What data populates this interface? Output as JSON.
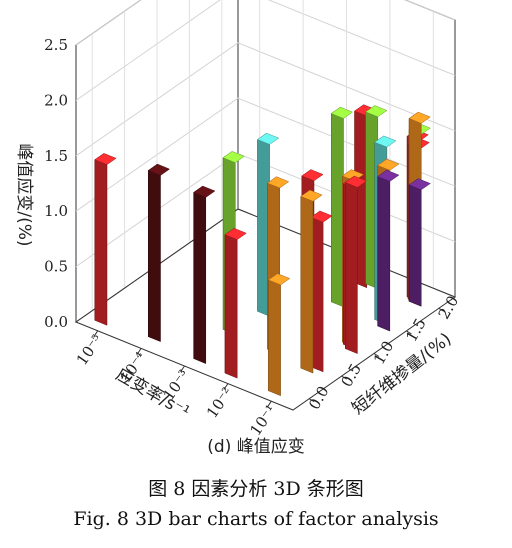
{
  "chart_data": {
    "type": "bar3d",
    "panel_label": "(d) 峰值应变",
    "ylabel": "峰值应变/(%)",
    "x_axis_label": "应变率/s⁻¹",
    "x_ticks": [
      "10⁻⁵",
      "10⁻⁴",
      "10⁻³",
      "10⁻²",
      "10⁻¹"
    ],
    "z_axis_label": "短纤维掺量/(%)",
    "z_ticks": [
      "0.0",
      "0.5",
      "1.0",
      "1.5",
      "2.0"
    ],
    "y_ticks": [
      "0.0",
      "0.5",
      "1.0",
      "1.5",
      "2.0",
      "2.5"
    ],
    "ylim": [
      0,
      2.5
    ],
    "grid": true,
    "colors": {
      "red": "#e0282c",
      "maroon": "#5a1014",
      "green": "#8fe33c",
      "cyan": "#5fd8d3",
      "orange": "#f39121",
      "purple": "#6b2a8a"
    },
    "bars": [
      {
        "strain_rate": "10⁻⁵",
        "fiber": "0.0",
        "value": 1.45,
        "color": "red"
      },
      {
        "strain_rate": "10⁻⁴",
        "fiber": "0.0",
        "value": 1.5,
        "color": "maroon"
      },
      {
        "strain_rate": "10⁻³",
        "fiber": "0.0",
        "value": 1.5,
        "color": "maroon"
      },
      {
        "strain_rate": "10⁻³",
        "fiber": "0.5",
        "value": 1.55,
        "color": "green"
      },
      {
        "strain_rate": "10⁻³",
        "fiber": "1.0",
        "value": 1.55,
        "color": "cyan"
      },
      {
        "strain_rate": "10⁻²",
        "fiber": "0.0",
        "value": 1.25,
        "color": "red"
      },
      {
        "strain_rate": "10⁻²",
        "fiber": "0.5",
        "value": 1.5,
        "color": "orange"
      },
      {
        "strain_rate": "10⁻²",
        "fiber": "1.0",
        "value": 1.4,
        "color": "red"
      },
      {
        "strain_rate": "10⁻²",
        "fiber": "1.5",
        "value": 1.7,
        "color": "green"
      },
      {
        "strain_rate": "10⁻²",
        "fiber": "2.0",
        "value": 1.55,
        "color": "green"
      },
      {
        "strain_rate": "10⁻¹",
        "fiber": "0.0",
        "value": 1.0,
        "color": "orange"
      },
      {
        "strain_rate": "10⁻¹",
        "fiber": "0.5",
        "value": 1.35,
        "color": "red"
      },
      {
        "strain_rate": "10⁻¹",
        "fiber": "1.0",
        "value": 1.5,
        "color": "red"
      },
      {
        "strain_rate": "10⁻¹",
        "fiber": "1.5",
        "value": 1.6,
        "color": "cyan"
      },
      {
        "strain_rate": "10⁻¹",
        "fiber": "2.0",
        "value": 1.55,
        "color": "green"
      },
      {
        "strain_rate": "10⁻²",
        "fiber": "2.0",
        "value": 1.55,
        "color": "red"
      },
      {
        "strain_rate": "10⁻¹",
        "fiber": "2.0",
        "value": 1.4,
        "color": "red"
      },
      {
        "strain_rate": "10⁻¹",
        "fiber": "1.5",
        "value": 1.45,
        "color": "orange"
      },
      {
        "strain_rate": "10⁻¹",
        "fiber": "1.0",
        "value": 1.5,
        "color": "orange"
      },
      {
        "strain_rate": "10⁻¹",
        "fiber": "2.0",
        "value": 1.65,
        "color": "orange"
      },
      {
        "strain_rate": "10⁻¹",
        "fiber": "0.5",
        "value": 1.55,
        "color": "orange"
      },
      {
        "strain_rate": "10⁻¹",
        "fiber": "1.0",
        "value": 1.45,
        "color": "red"
      },
      {
        "strain_rate": "10⁻¹",
        "fiber": "1.5",
        "value": 1.35,
        "color": "purple"
      },
      {
        "strain_rate": "10⁻¹",
        "fiber": "2.0",
        "value": 1.45,
        "color": "red"
      },
      {
        "strain_rate": "10⁻¹",
        "fiber": "2.0",
        "value": 1.05,
        "color": "purple"
      }
    ]
  },
  "captions": {
    "cn": "图 8   因素分析 3D 条形图",
    "en": "Fig. 8    3D bar charts of factor analysis"
  }
}
